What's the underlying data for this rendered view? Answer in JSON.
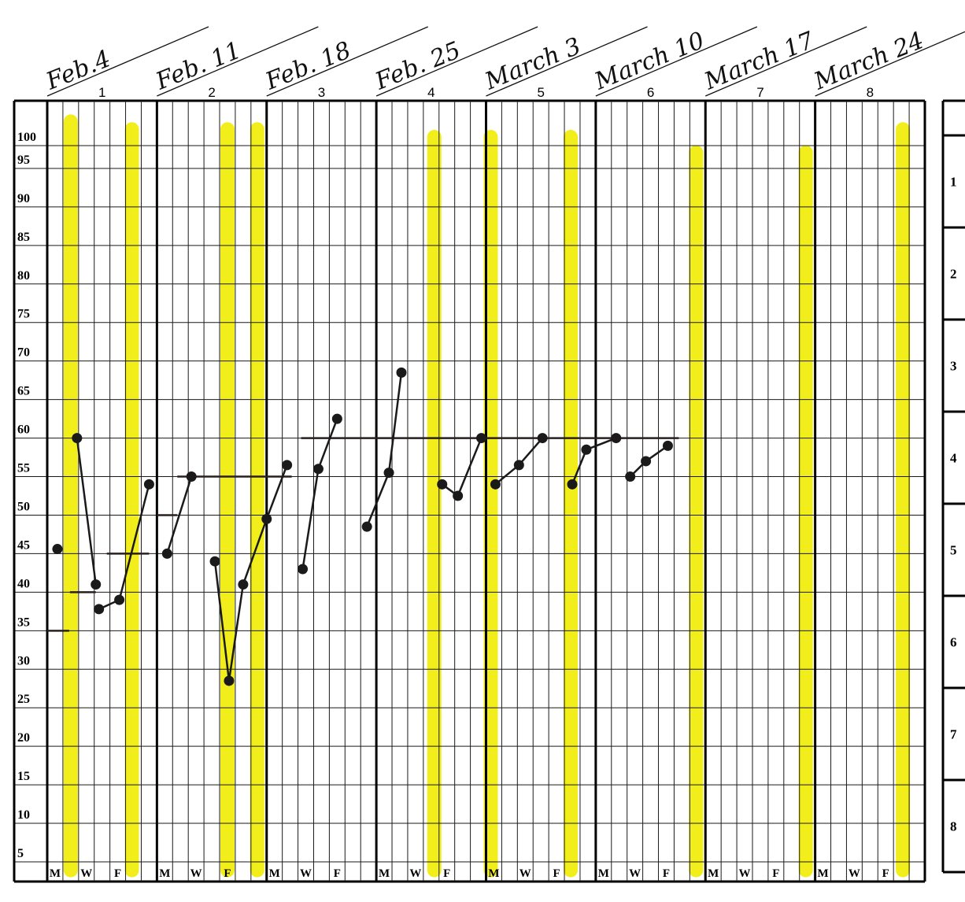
{
  "chart_data": {
    "type": "line",
    "title": "",
    "xlabel": "",
    "ylabel": "",
    "ylim": [
      0,
      105
    ],
    "y_ticks": [
      100,
      95,
      90,
      85,
      80,
      75,
      70,
      65,
      60,
      55,
      50,
      45,
      40,
      35,
      30,
      25,
      20,
      15,
      10,
      5
    ],
    "weeks": [
      {
        "number": "1",
        "date": "Feb.4"
      },
      {
        "number": "2",
        "date": "Feb. 11"
      },
      {
        "number": "3",
        "date": "Feb. 18"
      },
      {
        "number": "4",
        "date": "Feb. 25"
      },
      {
        "number": "5",
        "date": "March 3"
      },
      {
        "number": "6",
        "date": "March 10"
      },
      {
        "number": "7",
        "date": "March 17"
      },
      {
        "number": "8",
        "date": "March 24"
      }
    ],
    "day_labels": [
      "M",
      "W",
      "F"
    ],
    "days_per_week": 7,
    "side_panel_numbers": [
      "1",
      "2",
      "3",
      "4",
      "5",
      "6",
      "7",
      "8"
    ],
    "highlight_color": "#f2ee1c",
    "line_color": "#1a1a1a",
    "highlights": [
      {
        "day": 1.5,
        "top": 102,
        "bottom": 3
      },
      {
        "day": 5.4,
        "top": 101,
        "bottom": 3
      },
      {
        "day": 11.5,
        "top": 101,
        "bottom": 3
      },
      {
        "day": 13.4,
        "top": 101,
        "bottom": 3
      },
      {
        "day": 24.7,
        "top": 100,
        "bottom": 3
      },
      {
        "day": 28.3,
        "top": 100,
        "bottom": 3
      },
      {
        "day": 33.4,
        "top": 100,
        "bottom": 3
      },
      {
        "day": 41.4,
        "top": 98,
        "bottom": 3
      },
      {
        "day": 48.4,
        "top": 98,
        "bottom": 3
      },
      {
        "day": 54.6,
        "top": 101,
        "bottom": 3
      }
    ],
    "series": [
      {
        "points": [
          [
            0.65,
            45.6
          ]
        ]
      },
      {
        "points": [
          [
            1.9,
            60
          ],
          [
            3.1,
            41
          ]
        ]
      },
      {
        "points": [
          [
            3.3,
            37.8
          ],
          [
            4.6,
            39
          ],
          [
            6.5,
            54
          ]
        ]
      },
      {
        "points": [
          [
            7.65,
            45
          ],
          [
            9.2,
            55
          ]
        ]
      },
      {
        "points": [
          [
            10.7,
            44
          ],
          [
            11.6,
            28.5
          ],
          [
            12.5,
            41
          ],
          [
            14.0,
            49.5
          ],
          [
            15.3,
            56.5
          ]
        ]
      },
      {
        "points": [
          [
            16.3,
            43
          ],
          [
            17.3,
            56
          ],
          [
            18.5,
            62.5
          ]
        ]
      },
      {
        "points": [
          [
            20.4,
            48.5
          ],
          [
            21.8,
            55.5
          ],
          [
            22.6,
            68.5
          ]
        ]
      },
      {
        "points": [
          [
            25.2,
            54
          ],
          [
            26.2,
            52.5
          ],
          [
            27.7,
            60
          ]
        ]
      },
      {
        "points": [
          [
            28.6,
            54
          ],
          [
            30.1,
            56.5
          ],
          [
            31.6,
            60
          ]
        ]
      },
      {
        "points": [
          [
            33.5,
            54
          ],
          [
            34.4,
            58.5
          ],
          [
            36.3,
            60
          ]
        ]
      },
      {
        "points": [
          [
            37.2,
            55
          ],
          [
            38.2,
            57
          ],
          [
            39.6,
            59
          ]
        ]
      }
    ],
    "baselines": [
      {
        "x0": 0,
        "x1": 1.4,
        "y": 35
      },
      {
        "x0": 1.45,
        "x1": 3.1,
        "y": 40
      },
      {
        "x0": 3.8,
        "x1": 6.5,
        "y": 45
      },
      {
        "x0": 7.0,
        "x1": 8.3,
        "y": 50
      },
      {
        "x0": 8.3,
        "x1": 15.6,
        "y": 55
      },
      {
        "x0": 16.2,
        "x1": 40.3,
        "y": 60
      }
    ]
  }
}
